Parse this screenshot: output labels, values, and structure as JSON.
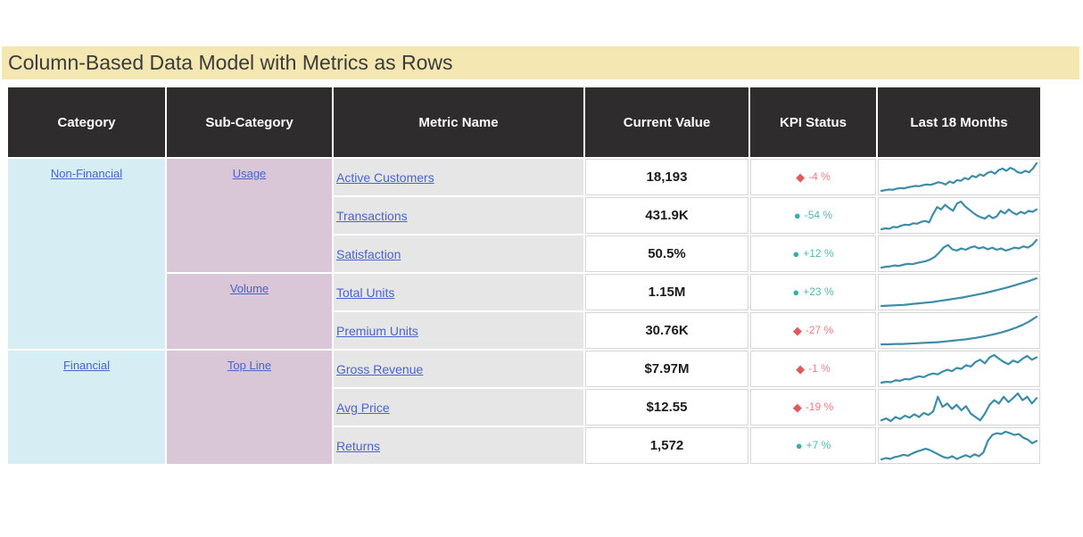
{
  "title": "Column-Based Data Model with Metrics as Rows",
  "colors": {
    "title_bg": "#f5e7b1",
    "header_bg": "#2e2c2c",
    "category_bg": "#d5edf3",
    "subcategory_bg": "#d9c6d7",
    "metric_bg": "#e6e6e6",
    "link_blue": "#4a63cf",
    "kpi_bad_shape": "#e0595f",
    "kpi_bad_text": "#ed7d85",
    "kpi_good_shape": "#35b2a3",
    "kpi_good_text": "#4fb9ac",
    "sparkline_stroke": "#3d8ca8"
  },
  "kpi_glyphs": {
    "diamond": "◆",
    "circle": "●"
  },
  "table": {
    "headers": {
      "category": "Category",
      "subcategory": "Sub-Category",
      "metric": "Metric Name",
      "value": "Current Value",
      "kpi": "KPI Status",
      "trend": "Last 18 Months"
    },
    "categories": [
      {
        "label": "Non-Financial",
        "rowspan": 5
      },
      {
        "label": "Financial",
        "rowspan": 3
      }
    ],
    "subcategories": [
      {
        "label": "Usage",
        "rowspan": 3
      },
      {
        "label": "Volume",
        "rowspan": 2
      },
      {
        "label": "Top Line",
        "rowspan": 3
      }
    ],
    "rows": [
      {
        "metric": "Active Customers",
        "value": "18,193",
        "kpi_trend": "-4 %",
        "kpi_shape": "diamond"
      },
      {
        "metric": "Transactions",
        "value": "431.9K",
        "kpi_trend": "-54 %",
        "kpi_shape": "circle"
      },
      {
        "metric": "Satisfaction",
        "value": "50.5%",
        "kpi_trend": "+12 %",
        "kpi_shape": "circle"
      },
      {
        "metric": "Total Units",
        "value": "1.15M",
        "kpi_trend": "+23 %",
        "kpi_shape": "circle"
      },
      {
        "metric": "Premium Units",
        "value": "30.76K",
        "kpi_trend": "-27 %",
        "kpi_shape": "diamond"
      },
      {
        "metric": "Gross Revenue",
        "value": "$7.97M",
        "kpi_trend": "-1 %",
        "kpi_shape": "diamond"
      },
      {
        "metric": "Avg Price",
        "value": "$12.55",
        "kpi_trend": "-19 %",
        "kpi_shape": "diamond"
      },
      {
        "metric": "Returns",
        "value": "1,572",
        "kpi_trend": "+7 %",
        "kpi_shape": "circle"
      }
    ]
  },
  "chart_data": {
    "type": "line",
    "title": "Last 18 Months sparklines (one per metric row)",
    "xlabel": "",
    "ylabel": "",
    "x_range_note": "last 18 months, no axis labels shown",
    "y_scale": "relative 0-100, visually estimated",
    "grid": false,
    "legend": false,
    "series": [
      {
        "name": "Active Customers",
        "values": [
          8,
          10,
          12,
          11,
          14,
          16,
          15,
          18,
          20,
          22,
          21,
          24,
          26,
          25,
          28,
          32,
          30,
          26,
          34,
          30,
          38,
          36,
          44,
          40,
          50,
          46,
          54,
          50,
          58,
          62,
          56,
          66,
          70,
          64,
          72,
          68,
          60,
          58,
          64,
          60,
          70,
          85
        ]
      },
      {
        "name": "Transactions",
        "values": [
          12,
          14,
          13,
          17,
          16,
          20,
          22,
          21,
          25,
          24,
          28,
          30,
          27,
          45,
          60,
          55,
          65,
          58,
          52,
          68,
          72,
          62,
          55,
          48,
          42,
          38,
          35,
          42,
          36,
          40,
          52,
          46,
          55,
          48,
          44,
          50,
          46,
          52,
          50,
          55
        ]
      },
      {
        "name": "Satisfaction",
        "values": [
          5,
          7,
          8,
          10,
          9,
          12,
          14,
          13,
          16,
          18,
          20,
          24,
          30,
          40,
          52,
          58,
          48,
          45,
          50,
          47,
          52,
          55,
          50,
          53,
          48,
          52,
          47,
          50,
          45,
          48,
          52,
          50,
          55,
          52,
          58,
          70
        ]
      },
      {
        "name": "Total Units",
        "values": [
          10,
          11,
          12,
          13,
          15,
          17,
          19,
          21,
          24,
          27,
          30,
          33,
          37,
          41,
          45,
          50,
          55,
          60,
          66,
          72,
          78,
          85
        ]
      },
      {
        "name": "Premium Units",
        "values": [
          8,
          8,
          9,
          9,
          10,
          11,
          12,
          13,
          14,
          16,
          18,
          20,
          22,
          25,
          28,
          32,
          36,
          41,
          47,
          54,
          62,
          72,
          85
        ]
      },
      {
        "name": "Gross Revenue",
        "values": [
          10,
          12,
          11,
          15,
          14,
          18,
          17,
          21,
          24,
          22,
          27,
          30,
          28,
          34,
          38,
          35,
          42,
          40,
          48,
          45,
          55,
          60,
          52,
          65,
          70,
          62,
          55,
          50,
          58,
          54,
          62,
          68,
          60,
          65
        ]
      },
      {
        "name": "Avg Price",
        "values": [
          25,
          28,
          24,
          30,
          27,
          32,
          29,
          34,
          30,
          36,
          33,
          38,
          60,
          45,
          50,
          42,
          48,
          40,
          46,
          35,
          30,
          25,
          35,
          48,
          55,
          50,
          60,
          52,
          58,
          65,
          55,
          60,
          50,
          58
        ]
      },
      {
        "name": "Returns",
        "values": [
          15,
          18,
          16,
          20,
          22,
          25,
          23,
          28,
          32,
          35,
          38,
          35,
          30,
          25,
          20,
          18,
          22,
          16,
          20,
          24,
          20,
          26,
          22,
          30,
          55,
          68,
          72,
          70,
          75,
          72,
          68,
          70,
          62,
          58,
          50,
          55
        ]
      }
    ]
  }
}
